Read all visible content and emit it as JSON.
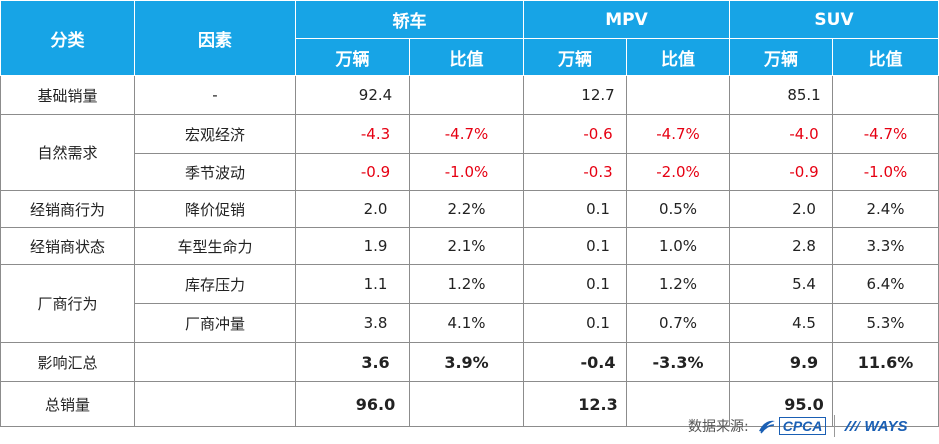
{
  "header": {
    "col_category": "分类",
    "col_factor": "因素",
    "groups": [
      "轿车",
      "MPV",
      "SUV"
    ],
    "unit": "万辆",
    "ratio": "比值"
  },
  "rows": {
    "base": {
      "cat": "基础销量",
      "factor": "-",
      "sedan_v": "92.4",
      "sedan_r": "",
      "mpv_v": "12.7",
      "mpv_r": "",
      "suv_v": "85.1",
      "suv_r": ""
    },
    "nat_cat": "自然需求",
    "macro": {
      "factor": "宏观经济",
      "sedan_v": "-4.3",
      "sedan_r": "-4.7%",
      "mpv_v": "-0.6",
      "mpv_r": "-4.7%",
      "suv_v": "-4.0",
      "suv_r": "-4.7%"
    },
    "season": {
      "factor": "季节波动",
      "sedan_v": "-0.9",
      "sedan_r": "-1.0%",
      "mpv_v": "-0.3",
      "mpv_r": "-2.0%",
      "suv_v": "-0.9",
      "suv_r": "-1.0%"
    },
    "dealer_behavior": {
      "cat": "经销商行为",
      "factor": "降价促销",
      "sedan_v": "2.0",
      "sedan_r": "2.2%",
      "mpv_v": "0.1",
      "mpv_r": "0.5%",
      "suv_v": "2.0",
      "suv_r": "2.4%"
    },
    "dealer_state": {
      "cat": "经销商状态",
      "factor": "车型生命力",
      "sedan_v": "1.9",
      "sedan_r": "2.1%",
      "mpv_v": "0.1",
      "mpv_r": "1.0%",
      "suv_v": "2.8",
      "suv_r": "3.3%"
    },
    "oem_cat": "厂商行为",
    "inventory": {
      "factor": "库存压力",
      "sedan_v": "1.1",
      "sedan_r": "1.2%",
      "mpv_v": "0.1",
      "mpv_r": "1.2%",
      "suv_v": "5.4",
      "suv_r": "6.4%"
    },
    "oem_push": {
      "factor": "厂商冲量",
      "sedan_v": "3.8",
      "sedan_r": "4.1%",
      "mpv_v": "0.1",
      "mpv_r": "0.7%",
      "suv_v": "4.5",
      "suv_r": "5.3%"
    },
    "impact": {
      "cat": "影响汇总",
      "factor": "",
      "sedan_v": "3.6",
      "sedan_r": "3.9%",
      "mpv_v": "-0.4",
      "mpv_r": "-3.3%",
      "suv_v": "9.9",
      "suv_r": "11.6%"
    },
    "total": {
      "cat": "总销量",
      "factor": "",
      "sedan_v": "96.0",
      "sedan_r": "",
      "mpv_v": "12.3",
      "mpv_r": "",
      "suv_v": "95.0",
      "suv_r": ""
    }
  },
  "footer": {
    "source_label": "数据来源:",
    "cpca_logo": "CPCA",
    "ways_logo": "WAYS"
  },
  "colors": {
    "header_bg": "#17a4e6",
    "negative": "#e60012"
  }
}
